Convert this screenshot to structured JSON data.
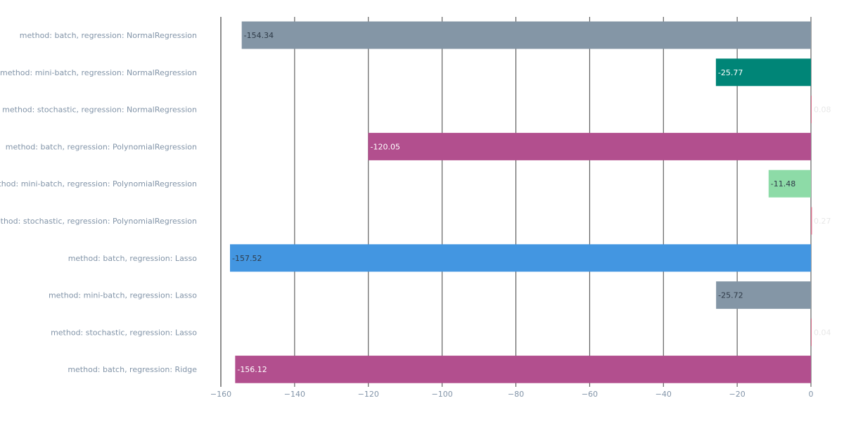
{
  "chart_data": {
    "type": "bar",
    "orientation": "horizontal",
    "title": "",
    "xlabel": "",
    "ylabel": "",
    "xlim": [
      -160,
      0
    ],
    "grid": true,
    "legend": "none",
    "x_ticks": [
      "−160",
      "−140",
      "−120",
      "−100",
      "−80",
      "−60",
      "−40",
      "−20",
      "0"
    ],
    "x_tick_values": [
      -160,
      -140,
      -120,
      -100,
      -80,
      -60,
      -40,
      -20,
      0
    ],
    "categories": [
      "method: batch, regression: NormalRegression",
      "method: mini-batch, regression: NormalRegression",
      "method: stochastic, regression: NormalRegression",
      "method: batch, regression: PolynomialRegression",
      "method: mini-batch, regression: PolynomialRegression",
      "method: stochastic, regression: PolynomialRegression",
      "method: batch, regression: Lasso",
      "method: mini-batch, regression: Lasso",
      "method: stochastic, regression: Lasso",
      "method: batch, regression: Ridge"
    ],
    "values": [
      -154.34,
      -25.77,
      0.08,
      -120.05,
      -11.48,
      0.27,
      -157.52,
      -25.72,
      0.04,
      -156.12
    ],
    "value_labels": [
      "-154.34",
      "-25.77",
      "0.08",
      "-120.05",
      "-11.48",
      "0.27",
      "-157.52",
      "-25.72",
      "0.04",
      "-156.12"
    ],
    "colors": [
      "#8496a6",
      "#008577",
      "#d66a86",
      "#b24f8e",
      "#8ddba7",
      "#d66a86",
      "#4396e1",
      "#8496a6",
      "#d66a86",
      "#b24f8e"
    ],
    "label_colors": [
      "#2f3b48",
      "#ffffff",
      "#e8e8e8",
      "#ffffff",
      "#2f3b48",
      "#e8e8e8",
      "#2f3b48",
      "#2f3b48",
      "#e8e8e8",
      "#ffffff"
    ],
    "axis_color": "#444444",
    "gridline_color": "#444444",
    "text_color": "#8294a8"
  }
}
